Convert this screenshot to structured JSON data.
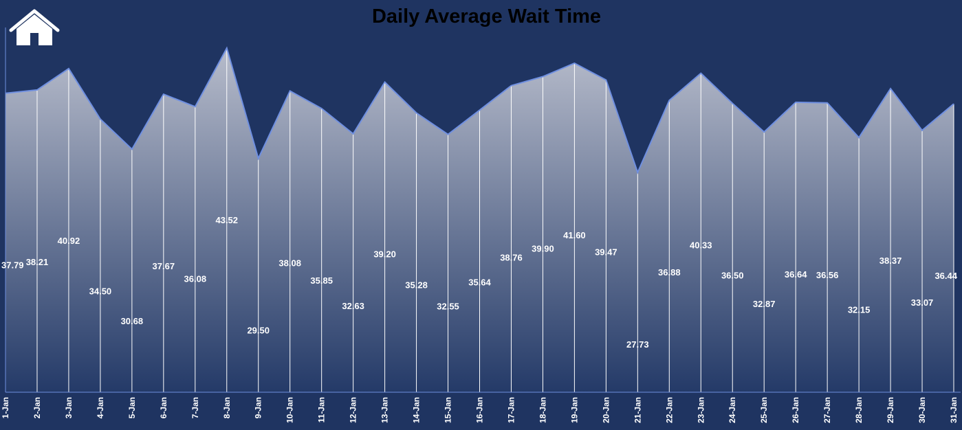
{
  "header": {
    "home_icon": "home-icon"
  },
  "colors": {
    "background": "#1f3461",
    "area_top": "#b7bccb",
    "area_bottom": "#243a68",
    "line": "#6f8fe0",
    "text": "#ffffff",
    "title": "#000000"
  },
  "chart_data": {
    "type": "area",
    "title": "Daily Average Wait Time",
    "xlabel": "",
    "ylabel": "",
    "categories": [
      "1-Jan",
      "2-Jan",
      "3-Jan",
      "4-Jan",
      "5-Jan",
      "6-Jan",
      "7-Jan",
      "8-Jan",
      "9-Jan",
      "10-Jan",
      "11-Jan",
      "12-Jan",
      "13-Jan",
      "14-Jan",
      "15-Jan",
      "16-Jan",
      "17-Jan",
      "18-Jan",
      "19-Jan",
      "20-Jan",
      "21-Jan",
      "22-Jan",
      "23-Jan",
      "24-Jan",
      "25-Jan",
      "26-Jan",
      "27-Jan",
      "28-Jan",
      "29-Jan",
      "30-Jan",
      "31-Jan"
    ],
    "values": [
      37.79,
      38.21,
      40.92,
      34.5,
      30.68,
      37.67,
      36.08,
      43.52,
      29.5,
      38.08,
      35.85,
      32.63,
      39.2,
      35.28,
      32.55,
      35.64,
      38.76,
      39.9,
      41.6,
      39.47,
      27.73,
      36.88,
      40.33,
      36.5,
      32.87,
      36.64,
      36.56,
      32.15,
      38.37,
      33.07,
      36.44
    ],
    "labels": [
      "37.79",
      "38.21",
      "40.92",
      "34.50",
      "30.68",
      "37.67",
      "36.08",
      "43.52",
      "29.50",
      "38.08",
      "35.85",
      "32.63",
      "39.20",
      "35.28",
      "32.55",
      "35.64",
      "38.76",
      "39.90",
      "41.60",
      "39.47",
      "27.73",
      "36.88",
      "40.33",
      "36.50",
      "32.87",
      "36.64",
      "36.56",
      "32.15",
      "38.37",
      "33.07",
      "36.44"
    ],
    "drop_lines": true,
    "grid": false,
    "legend": "none"
  }
}
